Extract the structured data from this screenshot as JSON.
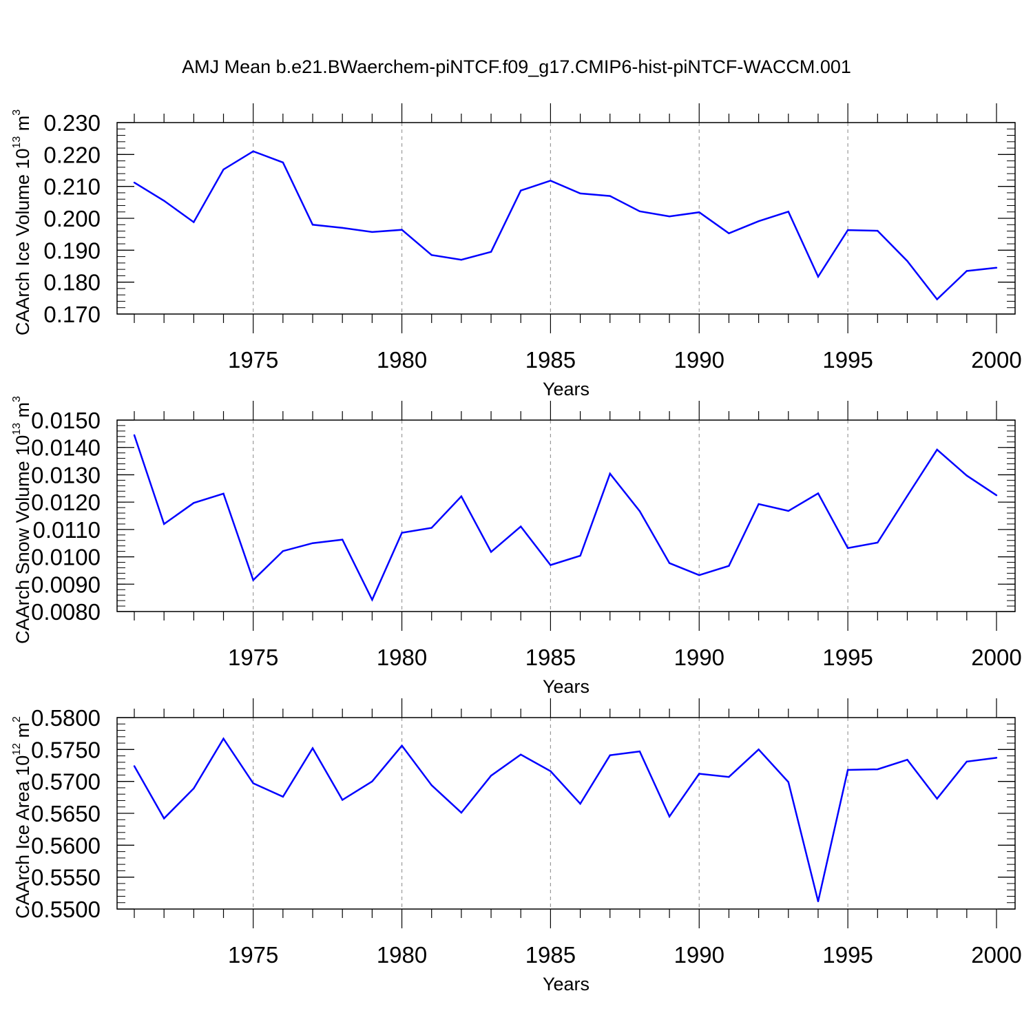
{
  "title": "AMJ Mean b.e21.BWaerchem-piNTCF.f09_g17.CMIP6-hist-piNTCF-WACCM.001",
  "colors": {
    "line": "#0000ff",
    "axis": "#000000",
    "grid": "#999999"
  },
  "chart_data": [
    {
      "type": "line",
      "title": "AMJ Mean b.e21.BWaerchem-piNTCF.f09_g17.CMIP6-hist-piNTCF-WACCM.001",
      "ylabel_main": "CAArch Ice Volume 10",
      "ylabel_exp": "13",
      "ylabel_unit": " m",
      "ylabel_unit_exp": "3",
      "xlabel": "Years",
      "xlim": [
        1971,
        2000
      ],
      "ylim": [
        0.17,
        0.23
      ],
      "yticks": [
        "0.170",
        "0.180",
        "0.190",
        "0.200",
        "0.210",
        "0.220",
        "0.230"
      ],
      "xticks": [
        "1975",
        "1980",
        "1985",
        "1990",
        "1995",
        "2000"
      ],
      "minor_y_step": 0.002,
      "x": [
        1971,
        1972,
        1973,
        1974,
        1975,
        1976,
        1977,
        1978,
        1979,
        1980,
        1981,
        1982,
        1983,
        1984,
        1985,
        1986,
        1987,
        1988,
        1989,
        1990,
        1991,
        1992,
        1993,
        1994,
        1995,
        1996,
        1997,
        1998,
        1999,
        2000
      ],
      "values": [
        0.2112,
        0.2055,
        0.1988,
        0.2153,
        0.221,
        0.2175,
        0.198,
        0.197,
        0.1957,
        0.1964,
        0.1885,
        0.187,
        0.1895,
        0.2087,
        0.2118,
        0.2078,
        0.207,
        0.2022,
        0.2006,
        0.2019,
        0.1953,
        0.1991,
        0.2021,
        0.1817,
        0.1963,
        0.1961,
        0.1866,
        0.1746,
        0.1835,
        0.1845
      ]
    },
    {
      "type": "line",
      "ylabel_main": "CAArch Snow Volume 10",
      "ylabel_exp": "13",
      "ylabel_unit": " m",
      "ylabel_unit_exp": "3",
      "xlabel": "Years",
      "xlim": [
        1971,
        2000
      ],
      "ylim": [
        0.008,
        0.015
      ],
      "yticks": [
        "0.0080",
        "0.0090",
        "0.0100",
        "0.0110",
        "0.0120",
        "0.0130",
        "0.0140",
        "0.0150"
      ],
      "xticks": [
        "1975",
        "1980",
        "1985",
        "1990",
        "1995",
        "2000"
      ],
      "minor_y_step": 0.0002,
      "x": [
        1971,
        1972,
        1973,
        1974,
        1975,
        1976,
        1977,
        1978,
        1979,
        1980,
        1981,
        1982,
        1983,
        1984,
        1985,
        1986,
        1987,
        1988,
        1989,
        1990,
        1991,
        1992,
        1993,
        1994,
        1995,
        1996,
        1997,
        1998,
        1999,
        2000
      ],
      "values": [
        0.01445,
        0.0112,
        0.01197,
        0.01231,
        0.00915,
        0.01021,
        0.0105,
        0.01063,
        0.00843,
        0.01088,
        0.01106,
        0.01221,
        0.01018,
        0.01111,
        0.0097,
        0.01004,
        0.01304,
        0.01167,
        0.00977,
        0.00933,
        0.00967,
        0.01193,
        0.01168,
        0.01232,
        0.01032,
        0.01052,
        0.01223,
        0.01392,
        0.01297,
        0.01225
      ]
    },
    {
      "type": "line",
      "ylabel_main": "CAArch Ice Area 10",
      "ylabel_exp": "12",
      "ylabel_unit": " m",
      "ylabel_unit_exp": "2",
      "xlabel": "Years",
      "xlim": [
        1971,
        2000
      ],
      "ylim": [
        0.55,
        0.58
      ],
      "yticks": [
        "0.5500",
        "0.5550",
        "0.5600",
        "0.5650",
        "0.5700",
        "0.5750",
        "0.5800"
      ],
      "xticks": [
        "1975",
        "1980",
        "1985",
        "1990",
        "1995",
        "2000"
      ],
      "minor_y_step": 0.001,
      "x": [
        1971,
        1972,
        1973,
        1974,
        1975,
        1976,
        1977,
        1978,
        1979,
        1980,
        1981,
        1982,
        1983,
        1984,
        1985,
        1986,
        1987,
        1988,
        1989,
        1990,
        1991,
        1992,
        1993,
        1994,
        1995,
        1996,
        1997,
        1998,
        1999,
        2000
      ],
      "values": [
        0.5724,
        0.5642,
        0.5689,
        0.5767,
        0.5697,
        0.5676,
        0.5752,
        0.5671,
        0.57,
        0.5756,
        0.5694,
        0.5651,
        0.5709,
        0.5742,
        0.5716,
        0.5665,
        0.5741,
        0.5747,
        0.5645,
        0.5712,
        0.5707,
        0.575,
        0.5699,
        0.5512,
        0.5718,
        0.5719,
        0.5734,
        0.5673,
        0.5731,
        0.5737
      ]
    }
  ]
}
